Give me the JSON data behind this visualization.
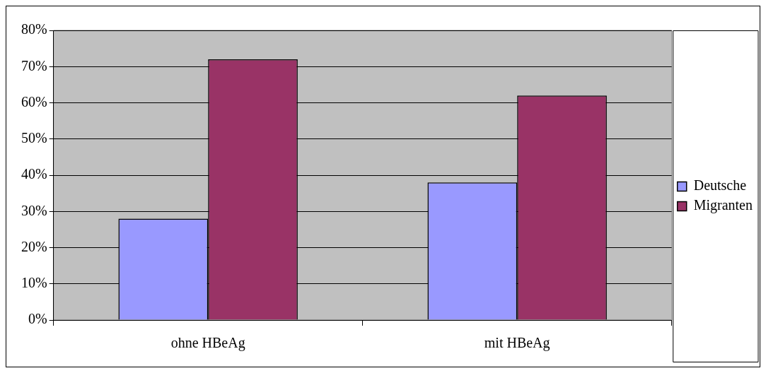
{
  "chart_data": {
    "type": "bar",
    "categories": [
      "ohne HBeAg",
      "mit HBeAg"
    ],
    "series": [
      {
        "name": "Deutsche",
        "color": "#9999ff",
        "values": [
          28,
          38
        ]
      },
      {
        "name": "Migranten",
        "color": "#993366",
        "values": [
          72,
          62
        ]
      }
    ],
    "ylim": [
      0,
      80
    ],
    "yticks": [
      {
        "value": 0,
        "label": "0%"
      },
      {
        "value": 10,
        "label": "10%"
      },
      {
        "value": 20,
        "label": "20%"
      },
      {
        "value": 30,
        "label": "30%"
      },
      {
        "value": 40,
        "label": "40%"
      },
      {
        "value": 50,
        "label": "50%"
      },
      {
        "value": 60,
        "label": "60%"
      },
      {
        "value": 70,
        "label": "70%"
      },
      {
        "value": 80,
        "label": "80%"
      }
    ],
    "grid": "y",
    "legend": "right"
  }
}
